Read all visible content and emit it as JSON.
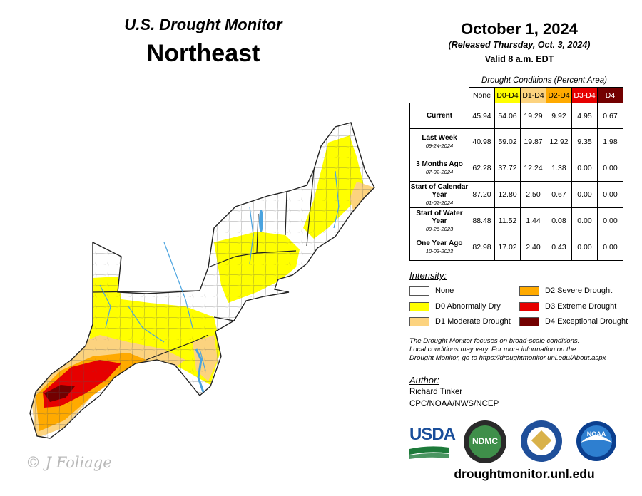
{
  "header": {
    "title": "U.S. Drought Monitor",
    "region": "Northeast",
    "date": "October 1, 2024",
    "released": "(Released Thursday, Oct. 3, 2024)",
    "valid": "Valid 8 a.m. EDT"
  },
  "stats_table": {
    "caption": "Drought Conditions (Percent Area)",
    "columns": [
      "None",
      "D0-D4",
      "D1-D4",
      "D2-D4",
      "D3-D4",
      "D4"
    ],
    "column_colors": [
      "#ffffff",
      "#ffff00",
      "#fcd37f",
      "#ffaa00",
      "#e60000",
      "#730000"
    ],
    "rows": [
      {
        "label": "Current",
        "sub": "",
        "values": [
          "45.94",
          "54.06",
          "19.29",
          "9.92",
          "4.95",
          "0.67"
        ]
      },
      {
        "label": "Last Week",
        "sub": "09-24-2024",
        "values": [
          "40.98",
          "59.02",
          "19.87",
          "12.92",
          "9.35",
          "1.98"
        ]
      },
      {
        "label": "3 Months Ago",
        "sub": "07-02-2024",
        "values": [
          "62.28",
          "37.72",
          "12.24",
          "1.38",
          "0.00",
          "0.00"
        ]
      },
      {
        "label": "Start of Calendar Year",
        "sub": "01-02-2024",
        "values": [
          "87.20",
          "12.80",
          "2.50",
          "0.67",
          "0.00",
          "0.00"
        ]
      },
      {
        "label": "Start of Water Year",
        "sub": "09-26-2023",
        "values": [
          "88.48",
          "11.52",
          "1.44",
          "0.08",
          "0.00",
          "0.00"
        ]
      },
      {
        "label": "One Year Ago",
        "sub": "10-03-2023",
        "values": [
          "82.98",
          "17.02",
          "2.40",
          "0.43",
          "0.00",
          "0.00"
        ]
      }
    ]
  },
  "legend": {
    "title": "Intensity:",
    "items": [
      {
        "label": "None",
        "color": "#ffffff"
      },
      {
        "label": "D0 Abnormally Dry",
        "color": "#ffff00"
      },
      {
        "label": "D1 Moderate Drought",
        "color": "#fcd37f"
      },
      {
        "label": "D2 Severe Drought",
        "color": "#ffaa00"
      },
      {
        "label": "D3 Extreme Drought",
        "color": "#e60000"
      },
      {
        "label": "D4 Exceptional Drought",
        "color": "#730000"
      }
    ]
  },
  "note": {
    "line1": "The Drought Monitor focuses on broad-scale conditions.",
    "line2": "Local conditions may vary. For more information on the",
    "line3": "Drought Monitor, go to https://droughtmonitor.unl.edu/About.aspx"
  },
  "author": {
    "label": "Author:",
    "name": "Richard Tinker",
    "org": "CPC/NOAA/NWS/NCEP"
  },
  "logos": {
    "usda": "USDA",
    "ndmc": "NDMC",
    "noaa": "NOAA"
  },
  "website": "droughtmonitor.unl.edu",
  "watermark": "© J Foliage",
  "colors": {
    "water": "#4aa3df",
    "outline": "#222222"
  }
}
